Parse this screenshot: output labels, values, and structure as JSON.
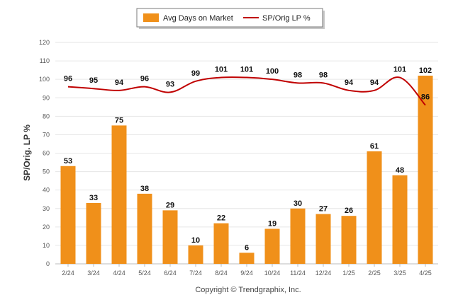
{
  "chart_data": {
    "type": "bar",
    "categories": [
      "2/24",
      "3/24",
      "4/24",
      "5/24",
      "6/24",
      "7/24",
      "8/24",
      "9/24",
      "10/24",
      "11/24",
      "12/24",
      "1/25",
      "2/25",
      "3/25",
      "4/25"
    ],
    "series": [
      {
        "name": "Avg Days on Market",
        "type": "bar",
        "color": "#f0901a",
        "values": [
          53,
          33,
          75,
          38,
          29,
          10,
          22,
          6,
          19,
          30,
          27,
          26,
          61,
          48,
          102
        ]
      },
      {
        "name": "SP/Orig LP %",
        "type": "line",
        "color": "#c00000",
        "values": [
          96,
          95,
          94,
          96,
          93,
          99,
          101,
          101,
          100,
          98,
          98,
          94,
          94,
          101,
          86
        ]
      }
    ],
    "ylabel": "SP/Orig. LP %",
    "ylim": [
      0,
      120
    ],
    "yticks": [
      0,
      10,
      20,
      30,
      40,
      50,
      60,
      70,
      80,
      90,
      100,
      110,
      120
    ],
    "grid": true,
    "legend_position": "top-center"
  },
  "footer": {
    "copyright": "Copyright © Trendgraphix, Inc."
  }
}
